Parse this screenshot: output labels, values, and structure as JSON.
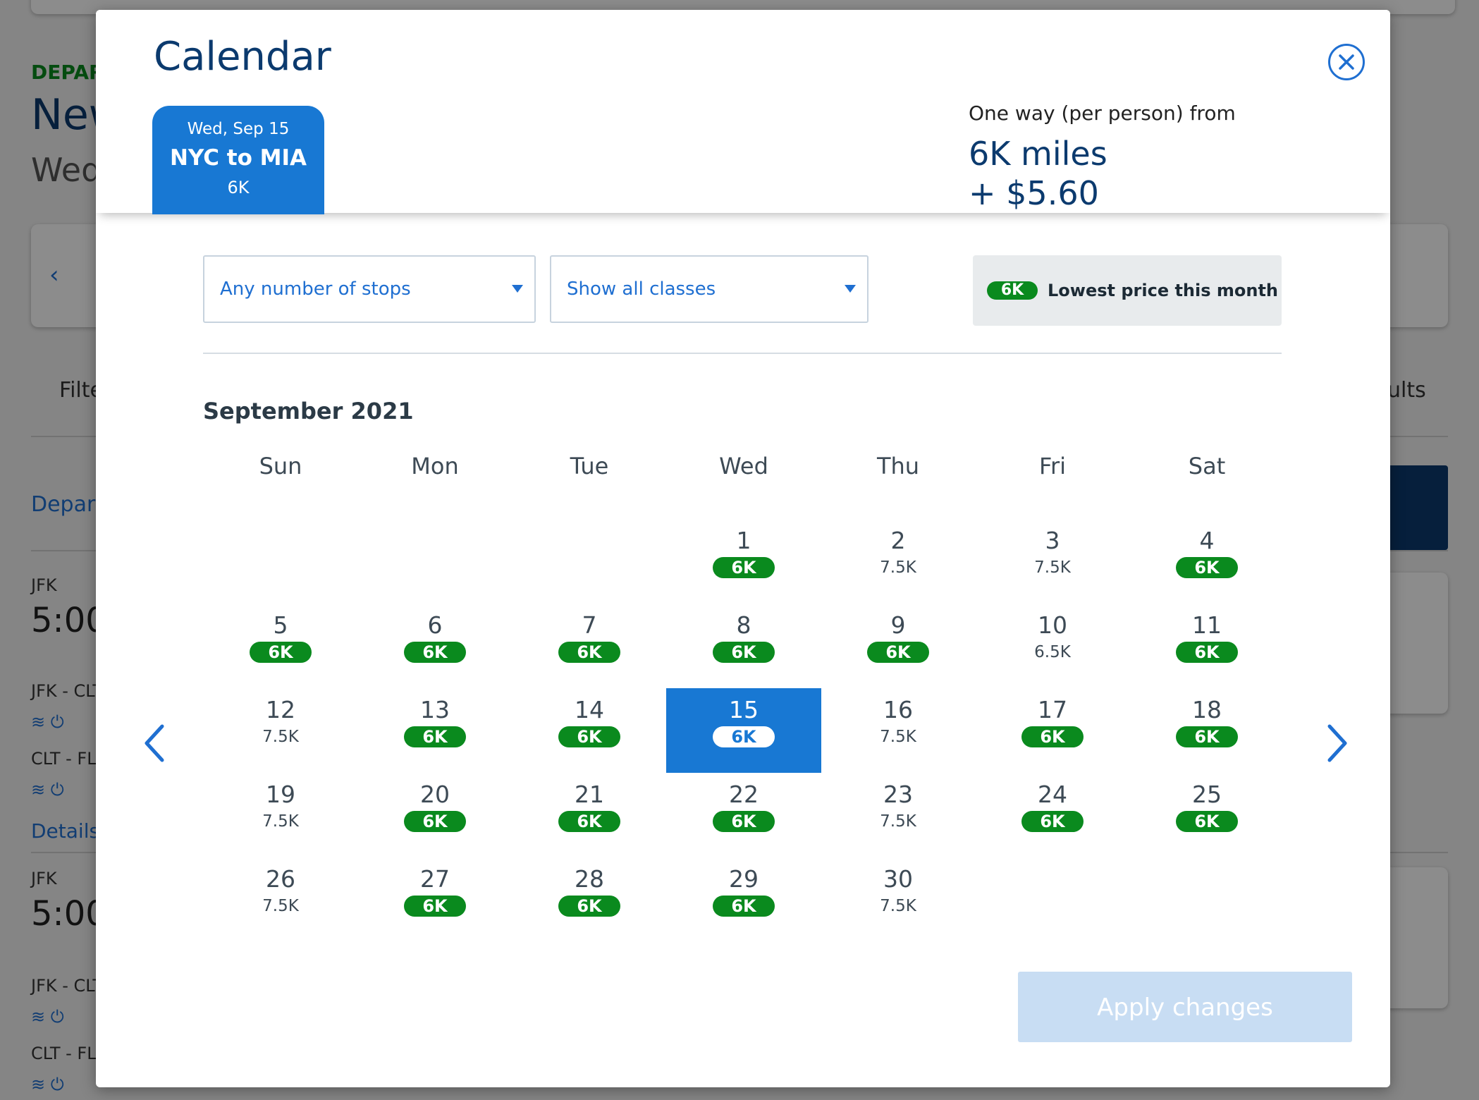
{
  "background": {
    "depart_label": "DEPAR",
    "city": "New",
    "date_partial": "Wed",
    "filter_partial": "Filte",
    "results_partial": "ults",
    "depart_link": "Depar",
    "flight1": {
      "origin": "JFK",
      "time": "5:00",
      "seg1": "JFK - CLT",
      "seg2": "CLT - FLL",
      "details": "Details"
    },
    "flight2": {
      "origin": "JFK",
      "time": "5:00",
      "seg1": "JFK - CLT",
      "seg2": "CLT - FLL"
    }
  },
  "modal": {
    "title": "Calendar",
    "trip_tab": {
      "date": "Wed, Sep 15",
      "route": "NYC to MIA",
      "price": "6K"
    },
    "fare": {
      "label": "One way (per person) from",
      "miles": "6K miles",
      "taxes": "+ $5.60"
    },
    "filters": {
      "stops": "Any number of stops",
      "classes": "Show all classes"
    },
    "legend": {
      "badge": "6K",
      "text": "Lowest price this month"
    },
    "month": "September 2021",
    "weekdays": [
      "Sun",
      "Mon",
      "Tue",
      "Wed",
      "Thu",
      "Fri",
      "Sat"
    ],
    "days": [
      {
        "day": "1",
        "price": "6K",
        "lowest": true
      },
      {
        "day": "2",
        "price": "7.5K",
        "lowest": false
      },
      {
        "day": "3",
        "price": "7.5K",
        "lowest": false
      },
      {
        "day": "4",
        "price": "6K",
        "lowest": true
      },
      {
        "day": "5",
        "price": "6K",
        "lowest": true
      },
      {
        "day": "6",
        "price": "6K",
        "lowest": true
      },
      {
        "day": "7",
        "price": "6K",
        "lowest": true
      },
      {
        "day": "8",
        "price": "6K",
        "lowest": true
      },
      {
        "day": "9",
        "price": "6K",
        "lowest": true
      },
      {
        "day": "10",
        "price": "6.5K",
        "lowest": false
      },
      {
        "day": "11",
        "price": "6K",
        "lowest": true
      },
      {
        "day": "12",
        "price": "7.5K",
        "lowest": false
      },
      {
        "day": "13",
        "price": "6K",
        "lowest": true
      },
      {
        "day": "14",
        "price": "6K",
        "lowest": true
      },
      {
        "day": "15",
        "price": "6K",
        "lowest": true,
        "selected": true
      },
      {
        "day": "16",
        "price": "7.5K",
        "lowest": false
      },
      {
        "day": "17",
        "price": "6K",
        "lowest": true
      },
      {
        "day": "18",
        "price": "6K",
        "lowest": true
      },
      {
        "day": "19",
        "price": "7.5K",
        "lowest": false
      },
      {
        "day": "20",
        "price": "6K",
        "lowest": true
      },
      {
        "day": "21",
        "price": "6K",
        "lowest": true
      },
      {
        "day": "22",
        "price": "6K",
        "lowest": true
      },
      {
        "day": "23",
        "price": "7.5K",
        "lowest": false
      },
      {
        "day": "24",
        "price": "6K",
        "lowest": true
      },
      {
        "day": "25",
        "price": "6K",
        "lowest": true
      },
      {
        "day": "26",
        "price": "7.5K",
        "lowest": false
      },
      {
        "day": "27",
        "price": "6K",
        "lowest": true
      },
      {
        "day": "28",
        "price": "6K",
        "lowest": true
      },
      {
        "day": "29",
        "price": "6K",
        "lowest": true
      },
      {
        "day": "30",
        "price": "7.5K",
        "lowest": false
      }
    ],
    "first_weekday_index": 3,
    "apply_label": "Apply changes"
  },
  "colors": {
    "brand_blue": "#1878d3",
    "lowest_green": "#0a8a1e",
    "title_navy": "#0b3a6e"
  }
}
